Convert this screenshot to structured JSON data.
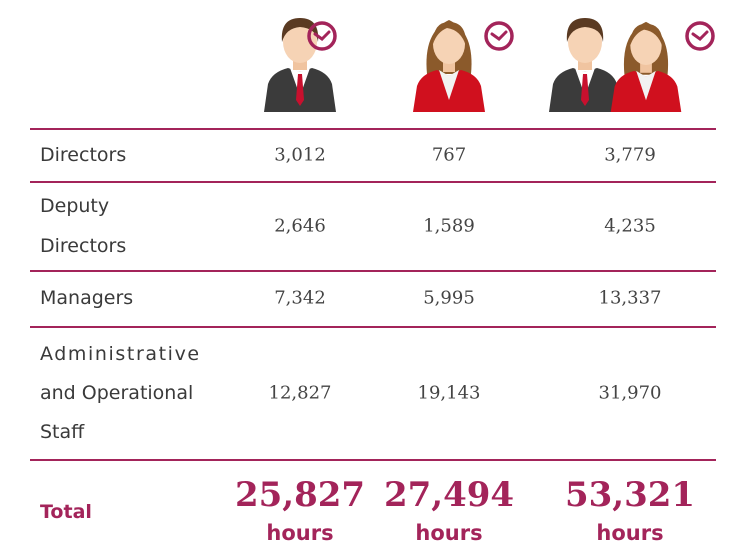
{
  "table": {
    "rows": [
      {
        "label": [
          "Directors"
        ],
        "values": [
          "3,012",
          "767",
          "3,779"
        ]
      },
      {
        "label": [
          "Deputy",
          "Directors"
        ],
        "values": [
          "2,646",
          "1,589",
          "4,235"
        ]
      },
      {
        "label": [
          "Managers"
        ],
        "values": [
          "7,342",
          "5,995",
          "13,337"
        ]
      },
      {
        "label": [
          "Administrative",
          "and Operational",
          "Staff"
        ],
        "values": [
          "12,827",
          "19,143",
          "31,970"
        ]
      }
    ],
    "total": {
      "label": "Total",
      "values": [
        "25,827",
        "27,494",
        "53,321"
      ],
      "unit": "hours"
    }
  }
}
